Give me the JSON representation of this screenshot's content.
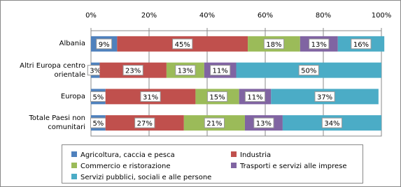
{
  "chart_data": {
    "type": "stacked-bar-horizontal",
    "categories": [
      "Albania",
      "Altri Europa centro orientale",
      "Europa",
      "Totale Paesi non comunitari"
    ],
    "series": [
      {
        "name": "Agricoltura, caccia e pesca",
        "color": "#4f81bd",
        "values": [
          9,
          3,
          5,
          5
        ],
        "value_labels": [
          "9%",
          "3%",
          "5%",
          "5%"
        ]
      },
      {
        "name": "Industria",
        "color": "#c0504d",
        "values": [
          45,
          23,
          31,
          27
        ],
        "value_labels": [
          "45%",
          "23%",
          "31%",
          "27%"
        ]
      },
      {
        "name": "Commercio e ristorazione",
        "color": "#9bbb59",
        "values": [
          18,
          13,
          15,
          21
        ],
        "value_labels": [
          "18%",
          "13%",
          "15%",
          "21%"
        ]
      },
      {
        "name": "Trasporti e servizi alle imprese",
        "color": "#8064a2",
        "values": [
          13,
          11,
          11,
          13
        ],
        "value_labels": [
          "13%",
          "11%",
          "11%",
          "13%"
        ]
      },
      {
        "name": "Servizi pubblici, sociali e alle persone",
        "color": "#4bacc6",
        "values": [
          16,
          50,
          37,
          34
        ],
        "value_labels": [
          "16%",
          "50%",
          "37%",
          "34%"
        ]
      }
    ],
    "xlim": [
      0,
      100
    ],
    "xticks": [
      {
        "value": 0,
        "label": "0%"
      },
      {
        "value": 20,
        "label": "20%"
      },
      {
        "value": 40,
        "label": "40%"
      },
      {
        "value": 60,
        "label": "60%"
      },
      {
        "value": 80,
        "label": "80%"
      },
      {
        "value": 100,
        "label": "100%"
      }
    ],
    "grid": true
  }
}
